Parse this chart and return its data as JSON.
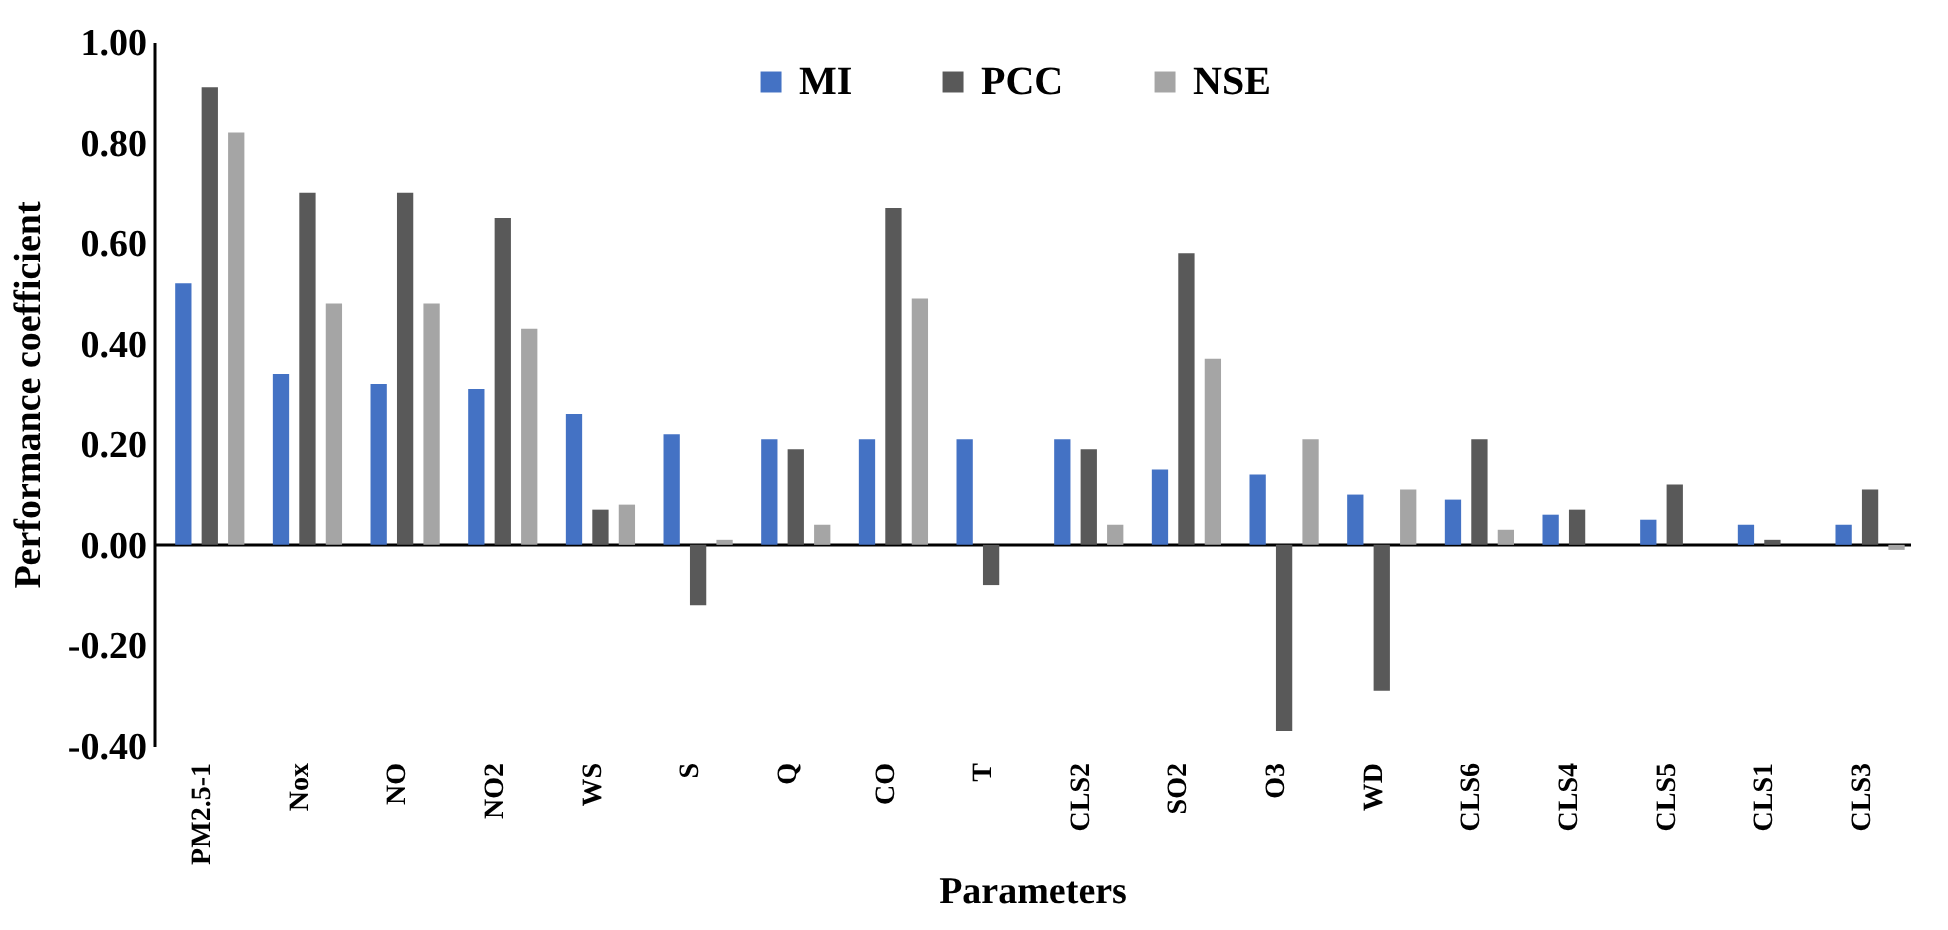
{
  "chart_data": {
    "type": "bar",
    "xlabel": "Parameters",
    "ylabel": "Performance coefficient",
    "categories": [
      "PM2.5-1",
      "Nox",
      "NO",
      "NO2",
      "WS",
      "S",
      "Q",
      "CO",
      "T",
      "CLS2",
      "SO2",
      "O3",
      "WD",
      "CLS6",
      "CLS4",
      "CLS5",
      "CLS1",
      "CLS3"
    ],
    "series": [
      {
        "name": "MI",
        "color": "#4472c4",
        "values": [
          0.52,
          0.34,
          0.32,
          0.31,
          0.26,
          0.22,
          0.21,
          0.21,
          0.21,
          0.21,
          0.15,
          0.14,
          0.1,
          0.09,
          0.06,
          0.05,
          0.04,
          0.04
        ]
      },
      {
        "name": "PCC",
        "color": "#595959",
        "values": [
          0.91,
          0.7,
          0.7,
          0.65,
          0.07,
          -0.12,
          0.19,
          0.67,
          -0.08,
          0.19,
          0.58,
          -0.37,
          -0.29,
          0.21,
          0.07,
          0.12,
          0.01,
          0.11
        ]
      },
      {
        "name": "NSE",
        "color": "#a5a5a5",
        "values": [
          0.82,
          0.48,
          0.48,
          0.43,
          0.08,
          0.01,
          0.04,
          0.49,
          null,
          0.04,
          0.37,
          0.21,
          0.11,
          0.03,
          null,
          null,
          null,
          -0.01
        ]
      }
    ],
    "ylim": [
      -0.4,
      1.0
    ],
    "yticks": [
      {
        "value": -0.4,
        "label": "-0.40"
      },
      {
        "value": -0.2,
        "label": "-0.20"
      },
      {
        "value": 0,
        "label": "0.00"
      },
      {
        "value": 0.2,
        "label": "0.20"
      },
      {
        "value": 0.4,
        "label": "0.40"
      },
      {
        "value": 0.6,
        "label": "0.60"
      },
      {
        "value": 0.8,
        "label": "0.80"
      },
      {
        "value": 1.0,
        "label": "1.00"
      }
    ],
    "legend": "top"
  }
}
